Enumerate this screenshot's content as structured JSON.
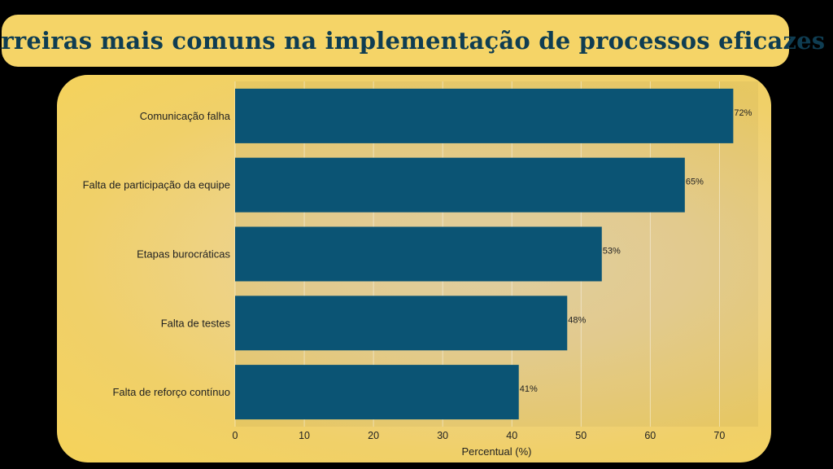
{
  "title": "Barreiras mais comuns na implementação de processos eficazes",
  "colors": {
    "background": "#000000",
    "title_bg": "#f5d467",
    "title_text": "#0f3d52",
    "bar": "#0b5474"
  },
  "chart_data": {
    "type": "bar",
    "orientation": "horizontal",
    "title": "Barreiras mais comuns na implementação de processos eficazes",
    "xlabel": "Percentual (%)",
    "ylabel": "",
    "categories": [
      "Comunicação falha",
      "Falta de participação da equipe",
      "Etapas burocráticas",
      "Falta de testes",
      "Falta de reforço contínuo"
    ],
    "values": [
      72,
      65,
      53,
      48,
      41
    ],
    "value_labels": [
      "72%",
      "65%",
      "53%",
      "48%",
      "41%"
    ],
    "xlim": [
      0,
      75.6
    ],
    "xticks": [
      0,
      10,
      20,
      30,
      40,
      50,
      60,
      70
    ],
    "grid": true
  }
}
